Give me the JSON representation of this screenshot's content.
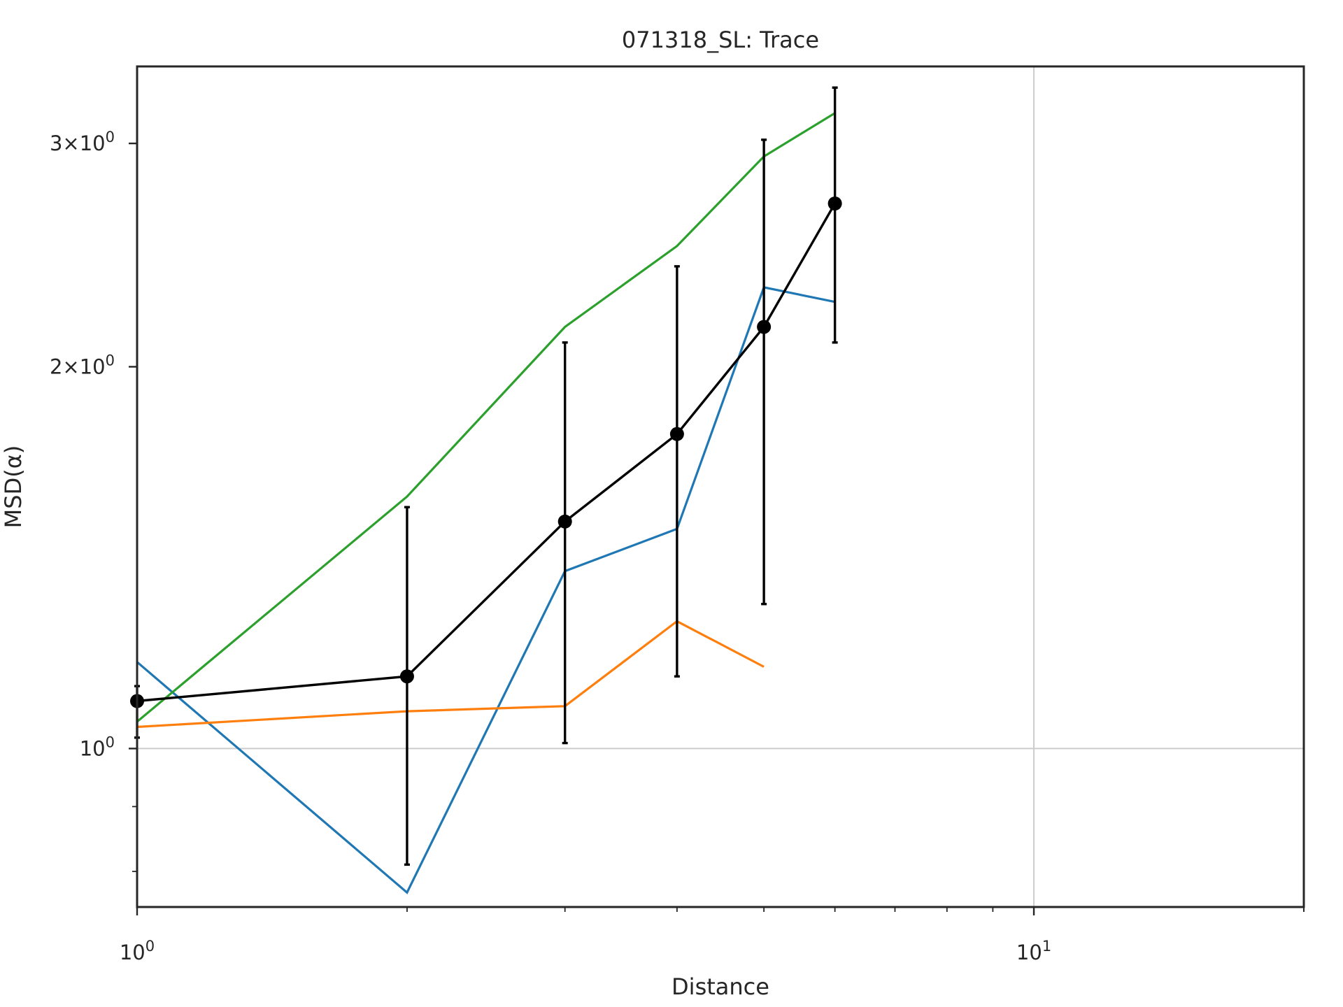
{
  "chart_data": {
    "type": "line",
    "title": "071318_SL: Trace",
    "xlabel": "Distance",
    "ylabel": "MSD(α)",
    "xscale": "log",
    "yscale": "log",
    "xlim": [
      1,
      20
    ],
    "ylim": [
      0.75,
      3.45
    ],
    "grid": "major only",
    "legend": "none",
    "x_ticks": [
      {
        "value": 1,
        "base": "10",
        "exp": "0"
      },
      {
        "value": 10,
        "base": "10",
        "exp": "1"
      }
    ],
    "y_ticks": [
      {
        "value": 1,
        "base": "10",
        "exp": "0",
        "mantissa": ""
      },
      {
        "value": 2,
        "base": "10",
        "exp": "0",
        "mantissa": "2×"
      },
      {
        "value": 3,
        "base": "10",
        "exp": "0",
        "mantissa": "3×"
      }
    ],
    "series": [
      {
        "color": "#1f77b4",
        "x": [
          1,
          2,
          3,
          4,
          5,
          6
        ],
        "y": [
          1.17,
          0.77,
          1.38,
          1.49,
          2.31,
          2.25
        ]
      },
      {
        "color": "#ff7f0e",
        "x": [
          1,
          2,
          3,
          4,
          5
        ],
        "y": [
          1.04,
          1.07,
          1.08,
          1.26,
          1.16
        ]
      },
      {
        "color": "#2ca02c",
        "x": [
          1,
          2,
          3,
          4,
          5,
          6
        ],
        "y": [
          1.05,
          1.58,
          2.15,
          2.49,
          2.93,
          3.17
        ]
      }
    ],
    "mean_series": {
      "color": "#000000",
      "x": [
        1,
        2,
        3,
        4,
        5,
        6
      ],
      "y": [
        1.09,
        1.14,
        1.51,
        1.77,
        2.15,
        2.69
      ],
      "yerr_low": [
        1.02,
        0.81,
        1.01,
        1.14,
        1.3,
        2.09
      ],
      "yerr_high": [
        1.12,
        1.55,
        2.09,
        2.4,
        3.02,
        3.32
      ]
    }
  }
}
